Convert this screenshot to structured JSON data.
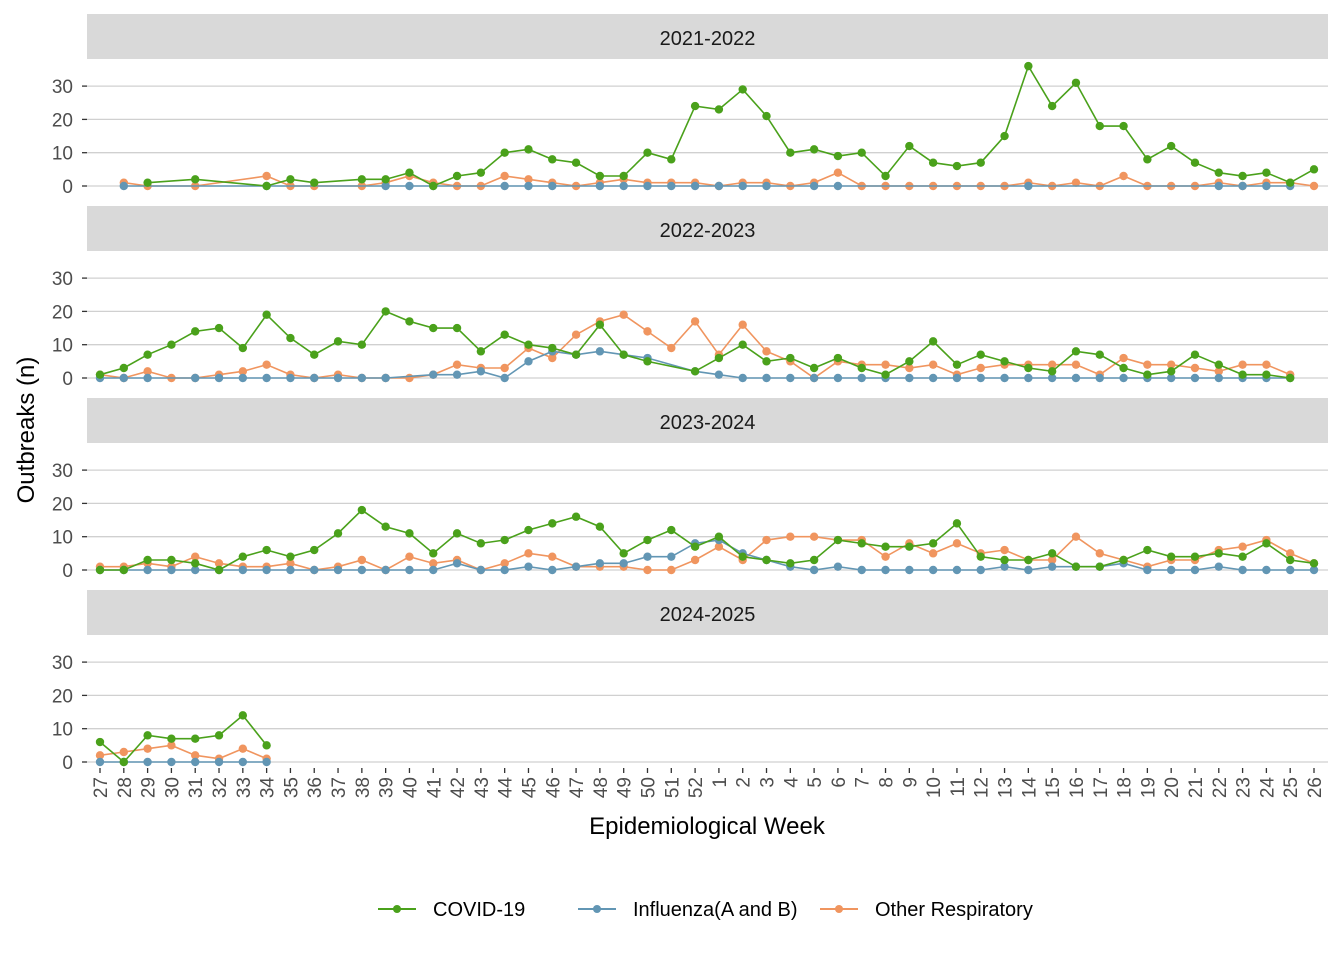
{
  "chart_data": {
    "type": "line",
    "xlabel": "Epidemiological Week",
    "ylabel": "Outbreaks (n)",
    "ylim": [
      0,
      36
    ],
    "yticks": [
      0,
      10,
      20,
      30
    ],
    "grid": true,
    "legend_position": "bottom",
    "categories": [
      "27",
      "28",
      "29",
      "30",
      "31",
      "32",
      "33",
      "34",
      "35",
      "36",
      "37",
      "38",
      "39",
      "40",
      "41",
      "42",
      "43",
      "44",
      "45",
      "46",
      "47",
      "48",
      "49",
      "50",
      "51",
      "52",
      "1",
      "2",
      "3",
      "4",
      "5",
      "6",
      "7",
      "8",
      "9",
      "10",
      "11",
      "12",
      "13",
      "14",
      "15",
      "16",
      "17",
      "18",
      "19",
      "20",
      "21",
      "22",
      "23",
      "24",
      "25",
      "26"
    ],
    "series_meta": [
      {
        "key": "covid",
        "name": "COVID-19",
        "color": "#4aa11b"
      },
      {
        "key": "flu",
        "name": "Influenza(A and B)",
        "color": "#6296b4"
      },
      {
        "key": "other",
        "name": "Other Respiratory",
        "color": "#f0955f"
      }
    ],
    "panels": [
      {
        "title": "2021-2022",
        "covid": [
          null,
          null,
          1,
          null,
          2,
          null,
          null,
          0,
          2,
          1,
          null,
          2,
          2,
          4,
          0,
          3,
          4,
          10,
          11,
          8,
          7,
          3,
          3,
          10,
          8,
          24,
          23,
          29,
          21,
          10,
          11,
          9,
          10,
          3,
          12,
          7,
          6,
          7,
          15,
          36,
          24,
          31,
          18,
          18,
          8,
          12,
          7,
          4,
          3,
          4,
          1,
          5
        ],
        "flu": [
          null,
          0,
          null,
          null,
          null,
          null,
          null,
          0,
          null,
          null,
          null,
          null,
          0,
          0,
          0,
          null,
          null,
          0,
          0,
          0,
          null,
          0,
          0,
          0,
          0,
          0,
          0,
          0,
          0,
          null,
          0,
          0,
          null,
          null,
          null,
          null,
          null,
          null,
          null,
          0,
          null,
          null,
          null,
          null,
          null,
          null,
          null,
          0,
          0,
          0,
          0,
          null
        ],
        "other": [
          null,
          1,
          0,
          null,
          0,
          null,
          null,
          3,
          0,
          0,
          null,
          0,
          1,
          3,
          1,
          0,
          0,
          3,
          2,
          1,
          0,
          1,
          2,
          1,
          1,
          1,
          0,
          1,
          1,
          0,
          1,
          4,
          0,
          0,
          0,
          0,
          0,
          0,
          0,
          1,
          0,
          1,
          0,
          3,
          0,
          0,
          0,
          1,
          0,
          1,
          1,
          0
        ]
      },
      {
        "title": "2022-2023",
        "covid": [
          1,
          3,
          7,
          10,
          14,
          15,
          9,
          19,
          12,
          7,
          11,
          10,
          20,
          17,
          15,
          15,
          8,
          13,
          10,
          9,
          7,
          16,
          7,
          5,
          null,
          2,
          6,
          10,
          5,
          6,
          3,
          6,
          3,
          1,
          5,
          11,
          4,
          7,
          5,
          3,
          2,
          8,
          7,
          3,
          1,
          2,
          7,
          4,
          1,
          1,
          0,
          null
        ],
        "flu": [
          0,
          0,
          0,
          null,
          0,
          0,
          0,
          0,
          0,
          0,
          0,
          0,
          0,
          null,
          1,
          1,
          2,
          0,
          5,
          8,
          7,
          8,
          7,
          6,
          null,
          2,
          1,
          0,
          0,
          0,
          0,
          0,
          0,
          0,
          0,
          0,
          0,
          0,
          0,
          0,
          0,
          0,
          0,
          0,
          0,
          0,
          0,
          0,
          0,
          0,
          0,
          null
        ],
        "other": [
          1,
          0,
          2,
          0,
          0,
          1,
          2,
          4,
          1,
          0,
          1,
          0,
          0,
          0,
          1,
          4,
          3,
          3,
          9,
          6,
          13,
          17,
          19,
          14,
          9,
          17,
          7,
          16,
          8,
          5,
          0,
          5,
          4,
          4,
          3,
          4,
          1,
          3,
          4,
          4,
          4,
          4,
          1,
          6,
          4,
          4,
          3,
          2,
          4,
          4,
          1,
          null
        ]
      },
      {
        "title": "2023-2024",
        "covid": [
          0,
          0,
          3,
          3,
          2,
          0,
          4,
          6,
          4,
          6,
          11,
          18,
          13,
          11,
          5,
          11,
          8,
          9,
          12,
          14,
          16,
          13,
          5,
          9,
          12,
          7,
          10,
          4,
          3,
          2,
          3,
          9,
          8,
          7,
          7,
          8,
          14,
          4,
          3,
          3,
          5,
          1,
          1,
          3,
          6,
          4,
          4,
          5,
          4,
          8,
          3,
          2
        ],
        "flu": [
          0,
          0,
          0,
          0,
          0,
          0,
          0,
          0,
          0,
          0,
          0,
          0,
          0,
          0,
          0,
          2,
          0,
          0,
          1,
          0,
          1,
          2,
          2,
          4,
          4,
          8,
          9,
          5,
          3,
          1,
          0,
          1,
          0,
          0,
          0,
          0,
          0,
          0,
          1,
          0,
          1,
          1,
          1,
          2,
          0,
          0,
          0,
          1,
          0,
          0,
          0,
          0
        ],
        "other": [
          1,
          1,
          2,
          1,
          4,
          2,
          1,
          1,
          2,
          0,
          1,
          3,
          0,
          4,
          2,
          3,
          0,
          2,
          5,
          4,
          1,
          1,
          1,
          0,
          0,
          3,
          7,
          3,
          9,
          10,
          10,
          9,
          9,
          4,
          8,
          5,
          8,
          5,
          6,
          3,
          3,
          10,
          5,
          3,
          1,
          3,
          3,
          6,
          7,
          9,
          5,
          2
        ]
      },
      {
        "title": "2024-2025",
        "covid": [
          6,
          0,
          8,
          7,
          7,
          8,
          14,
          5,
          null,
          null,
          null,
          null,
          null,
          null,
          null,
          null,
          null,
          null,
          null,
          null,
          null,
          null,
          null,
          null,
          null,
          null,
          null,
          null,
          null,
          null,
          null,
          null,
          null,
          null,
          null,
          null,
          null,
          null,
          null,
          null,
          null,
          null,
          null,
          null,
          null,
          null,
          null,
          null,
          null,
          null,
          null,
          null
        ],
        "flu": [
          0,
          0,
          0,
          0,
          0,
          0,
          0,
          0,
          null,
          null,
          null,
          null,
          null,
          null,
          null,
          null,
          null,
          null,
          null,
          null,
          null,
          null,
          null,
          null,
          null,
          null,
          null,
          null,
          null,
          null,
          null,
          null,
          null,
          null,
          null,
          null,
          null,
          null,
          null,
          null,
          null,
          null,
          null,
          null,
          null,
          null,
          null,
          null,
          null,
          null,
          null,
          null
        ],
        "other": [
          2,
          3,
          4,
          5,
          2,
          1,
          4,
          1,
          null,
          null,
          null,
          null,
          null,
          null,
          null,
          null,
          null,
          null,
          null,
          null,
          null,
          null,
          null,
          null,
          null,
          null,
          null,
          null,
          null,
          null,
          null,
          null,
          null,
          null,
          null,
          null,
          null,
          null,
          null,
          null,
          null,
          null,
          null,
          null,
          null,
          null,
          null,
          null,
          null,
          null,
          null,
          null
        ]
      }
    ]
  }
}
